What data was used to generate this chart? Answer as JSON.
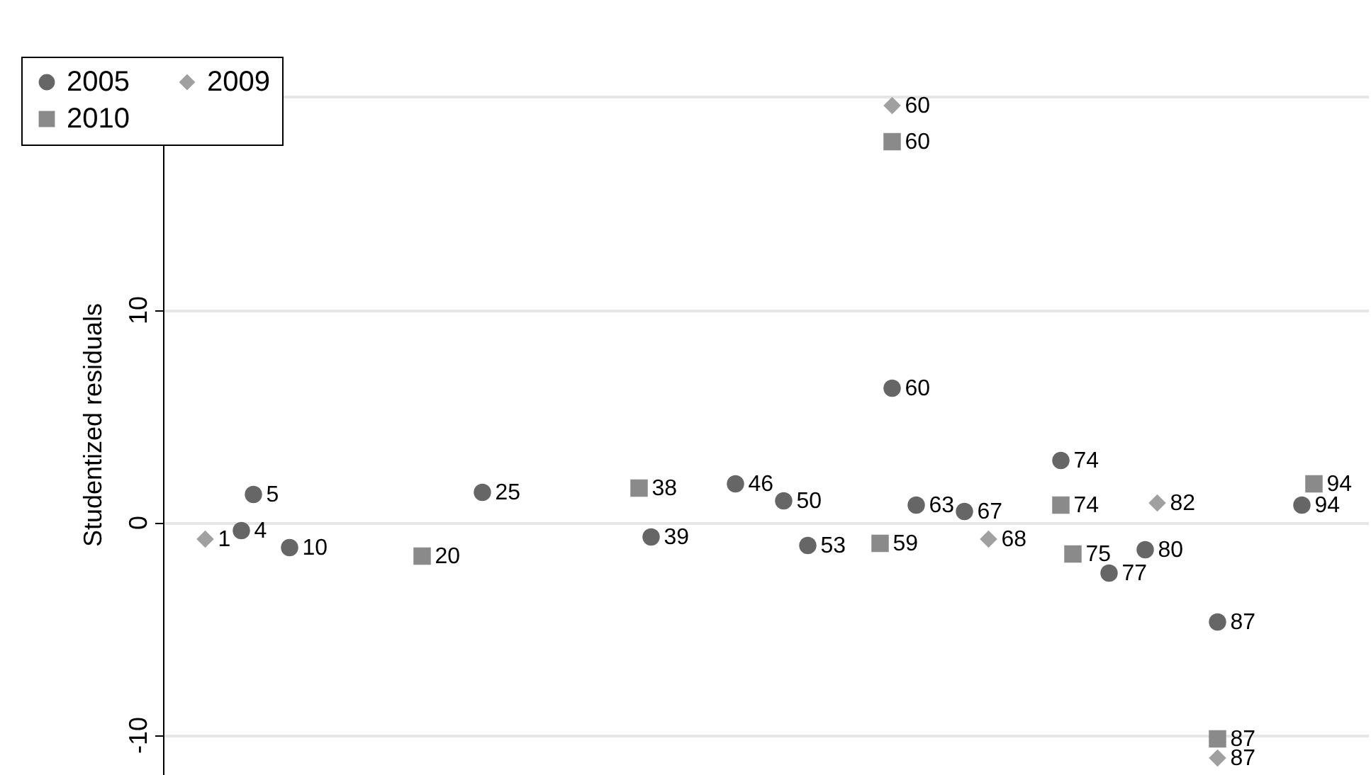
{
  "chart_data": {
    "type": "scatter",
    "ylabel": "Studentized residuals",
    "categories": [
      null,
      null,
      null,
      null,
      null,
      null,
      null,
      null,
      null,
      null,
      null,
      null,
      null,
      null,
      null,
      null,
      null,
      null,
      null,
      null,
      null,
      null,
      null,
      null,
      null,
      null,
      null,
      null,
      null,
      null,
      null,
      null,
      null,
      null,
      null,
      null,
      null,
      null,
      null,
      null,
      null,
      null,
      null,
      null,
      null,
      null,
      null,
      null,
      null,
      null,
      null,
      null,
      null,
      null,
      null,
      null,
      null,
      null,
      null,
      null,
      null,
      null,
      null,
      null,
      null,
      null,
      null,
      null,
      null,
      null,
      null,
      null,
      null,
      null,
      null,
      null,
      null,
      null,
      null,
      null,
      null,
      null,
      null,
      null,
      null,
      null,
      null,
      null,
      null,
      null,
      null,
      null,
      null,
      null,
      null,
      null,
      null,
      null,
      null,
      null
    ],
    "ylim": [
      -11.9,
      21.1
    ],
    "yticks": [
      -10,
      0,
      10,
      {
        "value": 20,
        "label": null
      }
    ],
    "grid": "y",
    "legend": "top left",
    "tick_labels": "y",
    "series": [
      {
        "name": "2005",
        "color": "#666666",
        "marker": "circle",
        "values": [
          null,
          null,
          null,
          null,
          null,
          null,
          -0.4,
          1.3,
          null,
          null,
          -1.2,
          null,
          null,
          null,
          null,
          null,
          null,
          null,
          null,
          null,
          null,
          null,
          null,
          null,
          null,
          null,
          1.4,
          null,
          null,
          null,
          null,
          null,
          null,
          null,
          null,
          null,
          null,
          null,
          null,
          null,
          -0.7,
          null,
          null,
          null,
          null,
          null,
          null,
          1.8,
          null,
          null,
          null,
          1.0,
          null,
          -1.1,
          null,
          null,
          null,
          null,
          null,
          null,
          6.3,
          null,
          0.8,
          null,
          null,
          null,
          0.5,
          null,
          null,
          null,
          null,
          null,
          null,
          null,
          2.9,
          null,
          null,
          null,
          -2.4,
          null,
          null,
          -1.3,
          null,
          null,
          null,
          null,
          null,
          -4.7,
          null,
          null,
          null,
          null,
          null,
          null,
          0.8,
          null,
          null,
          null,
          null,
          null
        ]
      },
      {
        "name": "2010",
        "color": "#8a8a8a",
        "marker": "square",
        "values": [
          null,
          null,
          null,
          null,
          null,
          null,
          null,
          null,
          null,
          null,
          null,
          null,
          null,
          null,
          null,
          null,
          null,
          null,
          null,
          null,
          null,
          -1.6,
          null,
          null,
          null,
          null,
          null,
          null,
          null,
          null,
          null,
          null,
          null,
          null,
          null,
          null,
          null,
          null,
          null,
          1.6,
          null,
          null,
          null,
          null,
          null,
          null,
          null,
          null,
          null,
          null,
          null,
          null,
          null,
          null,
          null,
          null,
          null,
          null,
          null,
          -1.0,
          17.9,
          null,
          null,
          null,
          null,
          null,
          null,
          null,
          null,
          null,
          null,
          null,
          null,
          null,
          0.8,
          -1.5,
          null,
          null,
          null,
          null,
          null,
          null,
          null,
          null,
          null,
          null,
          null,
          -10.2,
          null,
          null,
          null,
          null,
          null,
          null,
          null,
          1.8,
          null,
          null,
          null,
          null
        ]
      },
      {
        "name": "2009",
        "color": "#a0a0a0",
        "marker": "diamond",
        "values": [
          null,
          null,
          null,
          -0.8,
          null,
          null,
          null,
          null,
          null,
          null,
          null,
          null,
          null,
          null,
          null,
          null,
          null,
          null,
          null,
          null,
          null,
          null,
          null,
          null,
          null,
          null,
          null,
          null,
          null,
          null,
          null,
          null,
          null,
          null,
          null,
          null,
          null,
          null,
          null,
          null,
          null,
          null,
          null,
          null,
          null,
          null,
          null,
          null,
          null,
          null,
          null,
          null,
          null,
          null,
          null,
          null,
          null,
          null,
          null,
          null,
          19.6,
          null,
          null,
          null,
          null,
          null,
          null,
          null,
          -0.8,
          null,
          null,
          null,
          null,
          null,
          null,
          null,
          null,
          null,
          null,
          null,
          null,
          null,
          0.9,
          null,
          null,
          null,
          null,
          -11.1,
          null,
          null,
          null,
          null,
          null,
          null,
          null,
          null,
          null,
          null,
          null,
          null
        ]
      }
    ],
    "annotations": [
      "4",
      "5",
      "10",
      "25",
      "39",
      "46",
      "50",
      "53",
      "60",
      "63",
      "67",
      "74",
      "77",
      "80",
      "87",
      "94",
      "20",
      "38",
      "59",
      "60",
      "74",
      "75",
      "87",
      "94",
      "1",
      "60",
      "68",
      "82",
      "87"
    ]
  }
}
